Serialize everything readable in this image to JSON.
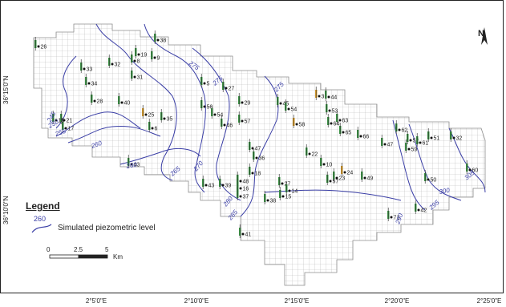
{
  "legend": {
    "title": "Legend",
    "symbol_label": "260",
    "item_label": "Simulated piezometric level"
  },
  "north_arrow": {
    "label": "N"
  },
  "scale_bar": {
    "start": "0",
    "mid": "2.5",
    "end": "5",
    "unit": "Km"
  },
  "latitude_labels": [
    "36°15'0\"N",
    "36°10'0\"N"
  ],
  "longitude_labels": [
    "2°5'0\"E",
    "2°10'0\"E",
    "2°15'0\"E",
    "2°20'0\"E",
    "2°25'0\"E"
  ],
  "contour_labels": [
    "245",
    "250",
    "255",
    "260",
    "260",
    "265",
    "270",
    "275",
    "275",
    "275",
    "280",
    "285",
    "290",
    "295",
    "300",
    "305"
  ],
  "well_labels": [
    "26",
    "33",
    "34",
    "28",
    "32",
    "31",
    "19",
    "8",
    "9",
    "38",
    "40",
    "25",
    "6",
    "35",
    "5",
    "27",
    "56",
    "54",
    "46",
    "29",
    "57",
    "45",
    "54",
    "58",
    "3",
    "44",
    "53",
    "63",
    "64",
    "65",
    "66",
    "47",
    "62",
    "52",
    "51",
    "32",
    "61",
    "59",
    "60",
    "50",
    "22",
    "10",
    "23",
    "24",
    "49",
    "47",
    "36",
    "18",
    "48",
    "39",
    "16",
    "37",
    "27",
    "14",
    "15",
    "38",
    "41",
    "43",
    "17",
    "21",
    "15",
    "57",
    "71",
    "42",
    "43"
  ],
  "colors": {
    "contour": "#3b3fa6",
    "grid": "#b8b8b8",
    "well_green": "#3e9a48",
    "well_orange": "#e0a12a",
    "frame": "#222222"
  }
}
